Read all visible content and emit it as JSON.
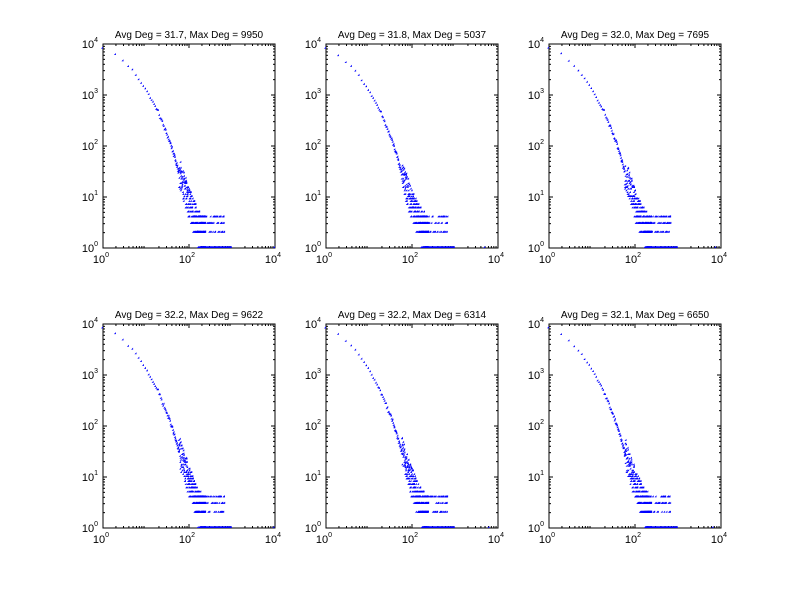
{
  "figure": {
    "background": "#ffffff"
  },
  "chart_data": [
    {
      "type": "scatter",
      "title": "Avg Deg = 31.7, Max Deg = 9950",
      "x_scale": "log",
      "y_scale": "log",
      "xlim": [
        1,
        10000
      ],
      "ylim": [
        1,
        10000
      ],
      "x_ticks": [
        1,
        100,
        10000
      ],
      "x_tick_labels": [
        [
          "10",
          "0"
        ],
        [
          "10",
          "2"
        ],
        [
          "10",
          "4"
        ]
      ],
      "y_ticks": [
        1,
        10,
        100,
        1000,
        10000
      ],
      "y_tick_labels": [
        [
          "10",
          "0"
        ],
        [
          "10",
          "1"
        ],
        [
          "10",
          "2"
        ],
        [
          "10",
          "3"
        ],
        [
          "10",
          "4"
        ]
      ],
      "grid": false,
      "marker": "diamond",
      "color": "#0000ff",
      "series": [
        {
          "curve": [
            [
              1.1,
              8000
            ],
            [
              2,
              6200
            ],
            [
              5,
              3000
            ],
            [
              10,
              1300
            ],
            [
              20,
              450
            ],
            [
              40,
              100
            ],
            [
              60,
              30
            ],
            [
              100,
              8
            ],
            [
              160,
              3
            ],
            [
              300,
              1.5
            ],
            [
              600,
              1
            ]
          ],
          "max_x": 9950,
          "spread": 0.12
        }
      ]
    },
    {
      "type": "scatter",
      "title": "Avg Deg = 31.8, Max Deg = 5037",
      "x_scale": "log",
      "y_scale": "log",
      "xlim": [
        1,
        10000
      ],
      "ylim": [
        1,
        10000
      ],
      "x_ticks": [
        1,
        100,
        10000
      ],
      "x_tick_labels": [
        [
          "10",
          "0"
        ],
        [
          "10",
          "2"
        ],
        [
          "10",
          "4"
        ]
      ],
      "y_ticks": [
        1,
        10,
        100,
        1000,
        10000
      ],
      "y_tick_labels": [
        [
          "10",
          "0"
        ],
        [
          "10",
          "1"
        ],
        [
          "10",
          "2"
        ],
        [
          "10",
          "3"
        ],
        [
          "10",
          "4"
        ]
      ],
      "grid": false,
      "marker": "diamond",
      "color": "#0000ff",
      "series": [
        {
          "curve": [
            [
              1.1,
              8000
            ],
            [
              2,
              6000
            ],
            [
              5,
              2900
            ],
            [
              10,
              1250
            ],
            [
              20,
              420
            ],
            [
              40,
              95
            ],
            [
              60,
              28
            ],
            [
              100,
              7
            ],
            [
              160,
              3
            ],
            [
              300,
              1.5
            ],
            [
              600,
              1
            ]
          ],
          "max_x": 5037,
          "spread": 0.12
        }
      ]
    },
    {
      "type": "scatter",
      "title": "Avg Deg = 32.0, Max Deg = 7695",
      "x_scale": "log",
      "y_scale": "log",
      "xlim": [
        1,
        10000
      ],
      "ylim": [
        1,
        10000
      ],
      "x_ticks": [
        1,
        100,
        10000
      ],
      "x_tick_labels": [
        [
          "10",
          "0"
        ],
        [
          "10",
          "2"
        ],
        [
          "10",
          "4"
        ]
      ],
      "y_ticks": [
        1,
        10,
        100,
        1000,
        10000
      ],
      "y_tick_labels": [
        [
          "10",
          "0"
        ],
        [
          "10",
          "1"
        ],
        [
          "10",
          "2"
        ],
        [
          "10",
          "3"
        ],
        [
          "10",
          "4"
        ]
      ],
      "grid": false,
      "marker": "diamond",
      "color": "#0000ff",
      "series": [
        {
          "curve": [
            [
              1.1,
              8000
            ],
            [
              2,
              6200
            ],
            [
              5,
              3000
            ],
            [
              10,
              1300
            ],
            [
              20,
              450
            ],
            [
              40,
              100
            ],
            [
              60,
              30
            ],
            [
              100,
              8
            ],
            [
              160,
              3
            ],
            [
              300,
              1.5
            ],
            [
              600,
              1
            ]
          ],
          "max_x": 7695,
          "spread": 0.12
        }
      ]
    },
    {
      "type": "scatter",
      "title": "Avg Deg = 32.2, Max Deg = 9622",
      "x_scale": "log",
      "y_scale": "log",
      "xlim": [
        1,
        10000
      ],
      "ylim": [
        1,
        10000
      ],
      "x_ticks": [
        1,
        100,
        10000
      ],
      "x_tick_labels": [
        [
          "10",
          "0"
        ],
        [
          "10",
          "2"
        ],
        [
          "10",
          "4"
        ]
      ],
      "y_ticks": [
        1,
        10,
        100,
        1000,
        10000
      ],
      "y_tick_labels": [
        [
          "10",
          "0"
        ],
        [
          "10",
          "1"
        ],
        [
          "10",
          "2"
        ],
        [
          "10",
          "3"
        ],
        [
          "10",
          "4"
        ]
      ],
      "grid": false,
      "marker": "diamond",
      "color": "#0000ff",
      "series": [
        {
          "curve": [
            [
              1.1,
              8000
            ],
            [
              2,
              6300
            ],
            [
              5,
              3100
            ],
            [
              10,
              1350
            ],
            [
              20,
              460
            ],
            [
              40,
              105
            ],
            [
              60,
              32
            ],
            [
              100,
              9
            ],
            [
              160,
              3
            ],
            [
              300,
              1.5
            ],
            [
              600,
              1
            ]
          ],
          "max_x": 9622,
          "spread": 0.12
        }
      ]
    },
    {
      "type": "scatter",
      "title": "Avg Deg = 32.2, Max Deg = 6314",
      "x_scale": "log",
      "y_scale": "log",
      "xlim": [
        1,
        10000
      ],
      "ylim": [
        1,
        10000
      ],
      "x_ticks": [
        1,
        100,
        10000
      ],
      "x_tick_labels": [
        [
          "10",
          "0"
        ],
        [
          "10",
          "2"
        ],
        [
          "10",
          "4"
        ]
      ],
      "y_ticks": [
        1,
        10,
        100,
        1000,
        10000
      ],
      "y_tick_labels": [
        [
          "10",
          "0"
        ],
        [
          "10",
          "1"
        ],
        [
          "10",
          "2"
        ],
        [
          "10",
          "3"
        ],
        [
          "10",
          "4"
        ]
      ],
      "grid": false,
      "marker": "diamond",
      "color": "#0000ff",
      "series": [
        {
          "curve": [
            [
              1.1,
              8000
            ],
            [
              2,
              6200
            ],
            [
              5,
              3050
            ],
            [
              10,
              1300
            ],
            [
              20,
              440
            ],
            [
              40,
              100
            ],
            [
              60,
              30
            ],
            [
              100,
              8
            ],
            [
              160,
              3
            ],
            [
              300,
              1.5
            ],
            [
              600,
              1
            ]
          ],
          "max_x": 6314,
          "spread": 0.12
        }
      ]
    },
    {
      "type": "scatter",
      "title": "Avg Deg = 32.1, Max Deg = 6650",
      "x_scale": "log",
      "y_scale": "log",
      "xlim": [
        1,
        10000
      ],
      "ylim": [
        1,
        10000
      ],
      "x_ticks": [
        1,
        100,
        10000
      ],
      "x_tick_labels": [
        [
          "10",
          "0"
        ],
        [
          "10",
          "2"
        ],
        [
          "10",
          "4"
        ]
      ],
      "y_ticks": [
        1,
        10,
        100,
        1000,
        10000
      ],
      "y_tick_labels": [
        [
          "10",
          "0"
        ],
        [
          "10",
          "1"
        ],
        [
          "10",
          "2"
        ],
        [
          "10",
          "3"
        ],
        [
          "10",
          "4"
        ]
      ],
      "grid": false,
      "marker": "diamond",
      "color": "#0000ff",
      "series": [
        {
          "curve": [
            [
              1.1,
              8000
            ],
            [
              2,
              6200
            ],
            [
              5,
              3000
            ],
            [
              10,
              1300
            ],
            [
              20,
              450
            ],
            [
              40,
              100
            ],
            [
              60,
              30
            ],
            [
              100,
              8
            ],
            [
              160,
              3
            ],
            [
              300,
              1.5
            ],
            [
              600,
              1
            ]
          ],
          "max_x": 6650,
          "spread": 0.12
        }
      ]
    }
  ]
}
